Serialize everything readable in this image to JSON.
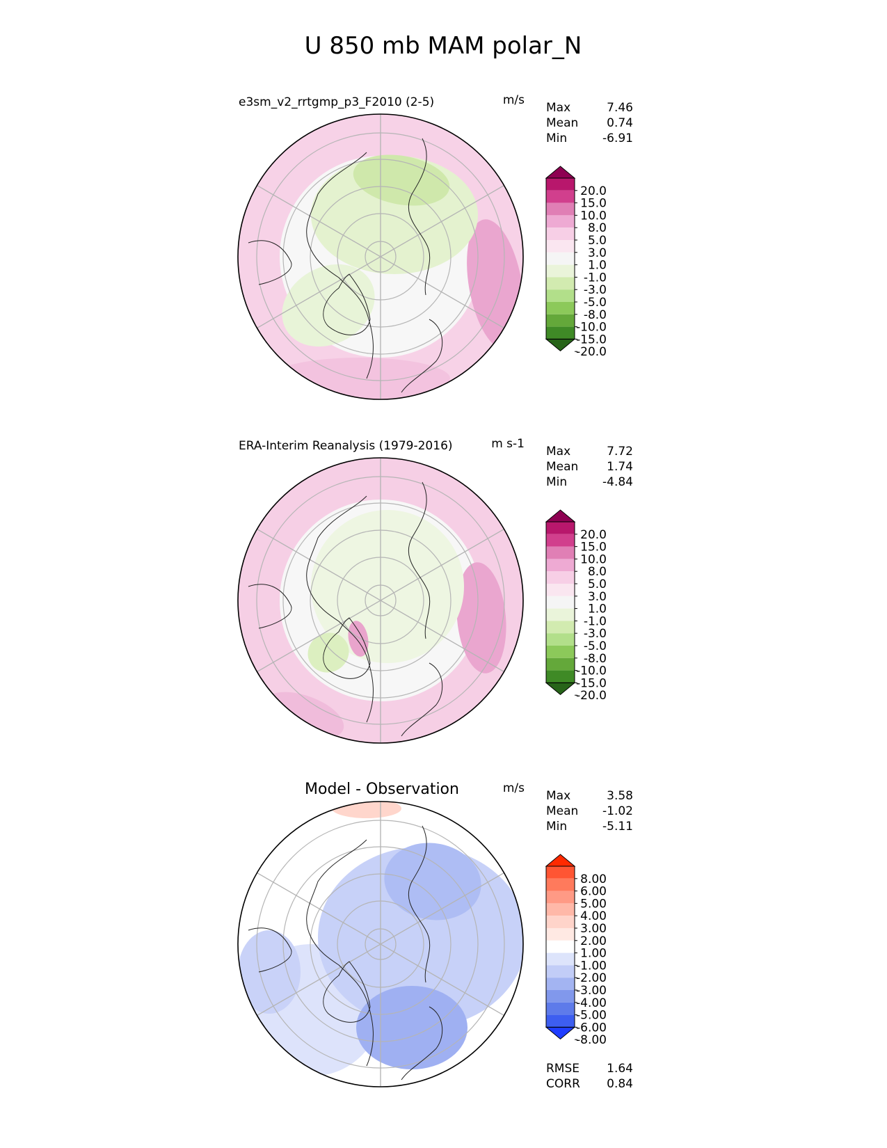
{
  "figure": {
    "title": "U 850 mb MAM polar_N"
  },
  "chart_data": [
    {
      "type": "heatmap",
      "projection": "north-polar-stereographic",
      "title": "e3sm_v2_rrtgmp_p3_F2010 (2-5)",
      "units": "m/s",
      "stats": [
        {
          "label": "Max",
          "value": "7.46"
        },
        {
          "label": "Mean",
          "value": "0.74"
        },
        {
          "label": "Min",
          "value": "-6.91"
        }
      ],
      "colorbar": {
        "levels": [
          "20.0",
          "15.0",
          "10.0",
          "8.0",
          "5.0",
          "3.0",
          "1.0",
          "-1.0",
          "-3.0",
          "-5.0",
          "-8.0",
          "-10.0",
          "-15.0",
          "-20.0"
        ],
        "colors": [
          "#8e0152",
          "#b8176c",
          "#d13f8d",
          "#e07fb5",
          "#eeaad3",
          "#f7cfe6",
          "#fae6f0",
          "#f5f5f5",
          "#eaf4da",
          "#d2ebb0",
          "#b2df8a",
          "#8cc95a",
          "#64a83a",
          "#3f8a26",
          "#276419"
        ],
        "extend": "both"
      },
      "field": {
        "base_color": "#f7f7f7",
        "patches": [
          {
            "name": "rim-pink",
            "color": "#f7d2e7"
          },
          {
            "name": "east-pacific-pink",
            "color": "#eaa6cf"
          },
          {
            "name": "south-pink",
            "color": "#f3c3df"
          },
          {
            "name": "arctic-green",
            "color": "#e4f2cf"
          },
          {
            "name": "siberia-green",
            "color": "#cfe8ab"
          },
          {
            "name": "greenland-green",
            "color": "#e8f4d8"
          }
        ]
      }
    },
    {
      "type": "heatmap",
      "projection": "north-polar-stereographic",
      "title": "ERA-Interim Reanalysis (1979-2016)",
      "units": "m s-1",
      "stats": [
        {
          "label": "Max",
          "value": "7.72"
        },
        {
          "label": "Mean",
          "value": "1.74"
        },
        {
          "label": "Min",
          "value": "-4.84"
        }
      ],
      "colorbar": {
        "levels": [
          "20.0",
          "15.0",
          "10.0",
          "8.0",
          "5.0",
          "3.0",
          "1.0",
          "-1.0",
          "-3.0",
          "-5.0",
          "-8.0",
          "-10.0",
          "-15.0",
          "-20.0"
        ],
        "colors": [
          "#8e0152",
          "#b8176c",
          "#d13f8d",
          "#e07fb5",
          "#eeaad3",
          "#f7cfe6",
          "#fae6f0",
          "#f5f5f5",
          "#eaf4da",
          "#d2ebb0",
          "#b2df8a",
          "#8cc95a",
          "#64a83a",
          "#3f8a26",
          "#276419"
        ],
        "extend": "both"
      },
      "field": {
        "base_color": "#f7f7f7",
        "patches": [
          {
            "name": "rim-pink",
            "color": "#f6cfe5"
          },
          {
            "name": "east-pacific-pink",
            "color": "#eaa6cf"
          },
          {
            "name": "south-pink",
            "color": "#f0bcdb"
          },
          {
            "name": "arctic-green",
            "color": "#eef6e2"
          },
          {
            "name": "greenland-pink",
            "color": "#e9a4cc"
          },
          {
            "name": "greenland-green",
            "color": "#dcefc0"
          }
        ]
      }
    },
    {
      "type": "heatmap",
      "projection": "north-polar-stereographic",
      "title": "Model - Observation",
      "units": "m/s",
      "stats": [
        {
          "label": "Max",
          "value": "3.58"
        },
        {
          "label": "Mean",
          "value": "-1.02"
        },
        {
          "label": "Min",
          "value": "-5.11"
        }
      ],
      "colorbar": {
        "levels": [
          "8.00",
          "6.00",
          "5.00",
          "4.00",
          "3.00",
          "2.00",
          "1.00",
          "-1.00",
          "-2.00",
          "-3.00",
          "-4.00",
          "-5.00",
          "-6.00",
          "-8.00"
        ],
        "colors": [
          "#ff2a00",
          "#ff5533",
          "#ff7a5c",
          "#ff9a85",
          "#ffb8a8",
          "#ffd4ca",
          "#ffe9e3",
          "#ffffff",
          "#dde4fb",
          "#c2cdf7",
          "#a3b4f2",
          "#8198ec",
          "#5e7bea",
          "#3d5ef0",
          "#1f3dff"
        ],
        "extend": "both"
      },
      "field": {
        "base_color": "#ffffff",
        "patches": [
          {
            "name": "arctic-blue",
            "color": "#c7d1f8"
          },
          {
            "name": "siberia-blue",
            "color": "#aebdf4"
          },
          {
            "name": "atlantic-blue",
            "color": "#9fb0f2"
          },
          {
            "name": "pacific-blue",
            "color": "#c9d2f8"
          },
          {
            "name": "rim-blue",
            "color": "#dde3fb"
          },
          {
            "name": "positive-red",
            "color": "#ffd6cc"
          }
        ]
      },
      "metrics": [
        {
          "label": "RMSE",
          "value": "1.64"
        },
        {
          "label": "CORR",
          "value": "0.84"
        }
      ]
    }
  ]
}
